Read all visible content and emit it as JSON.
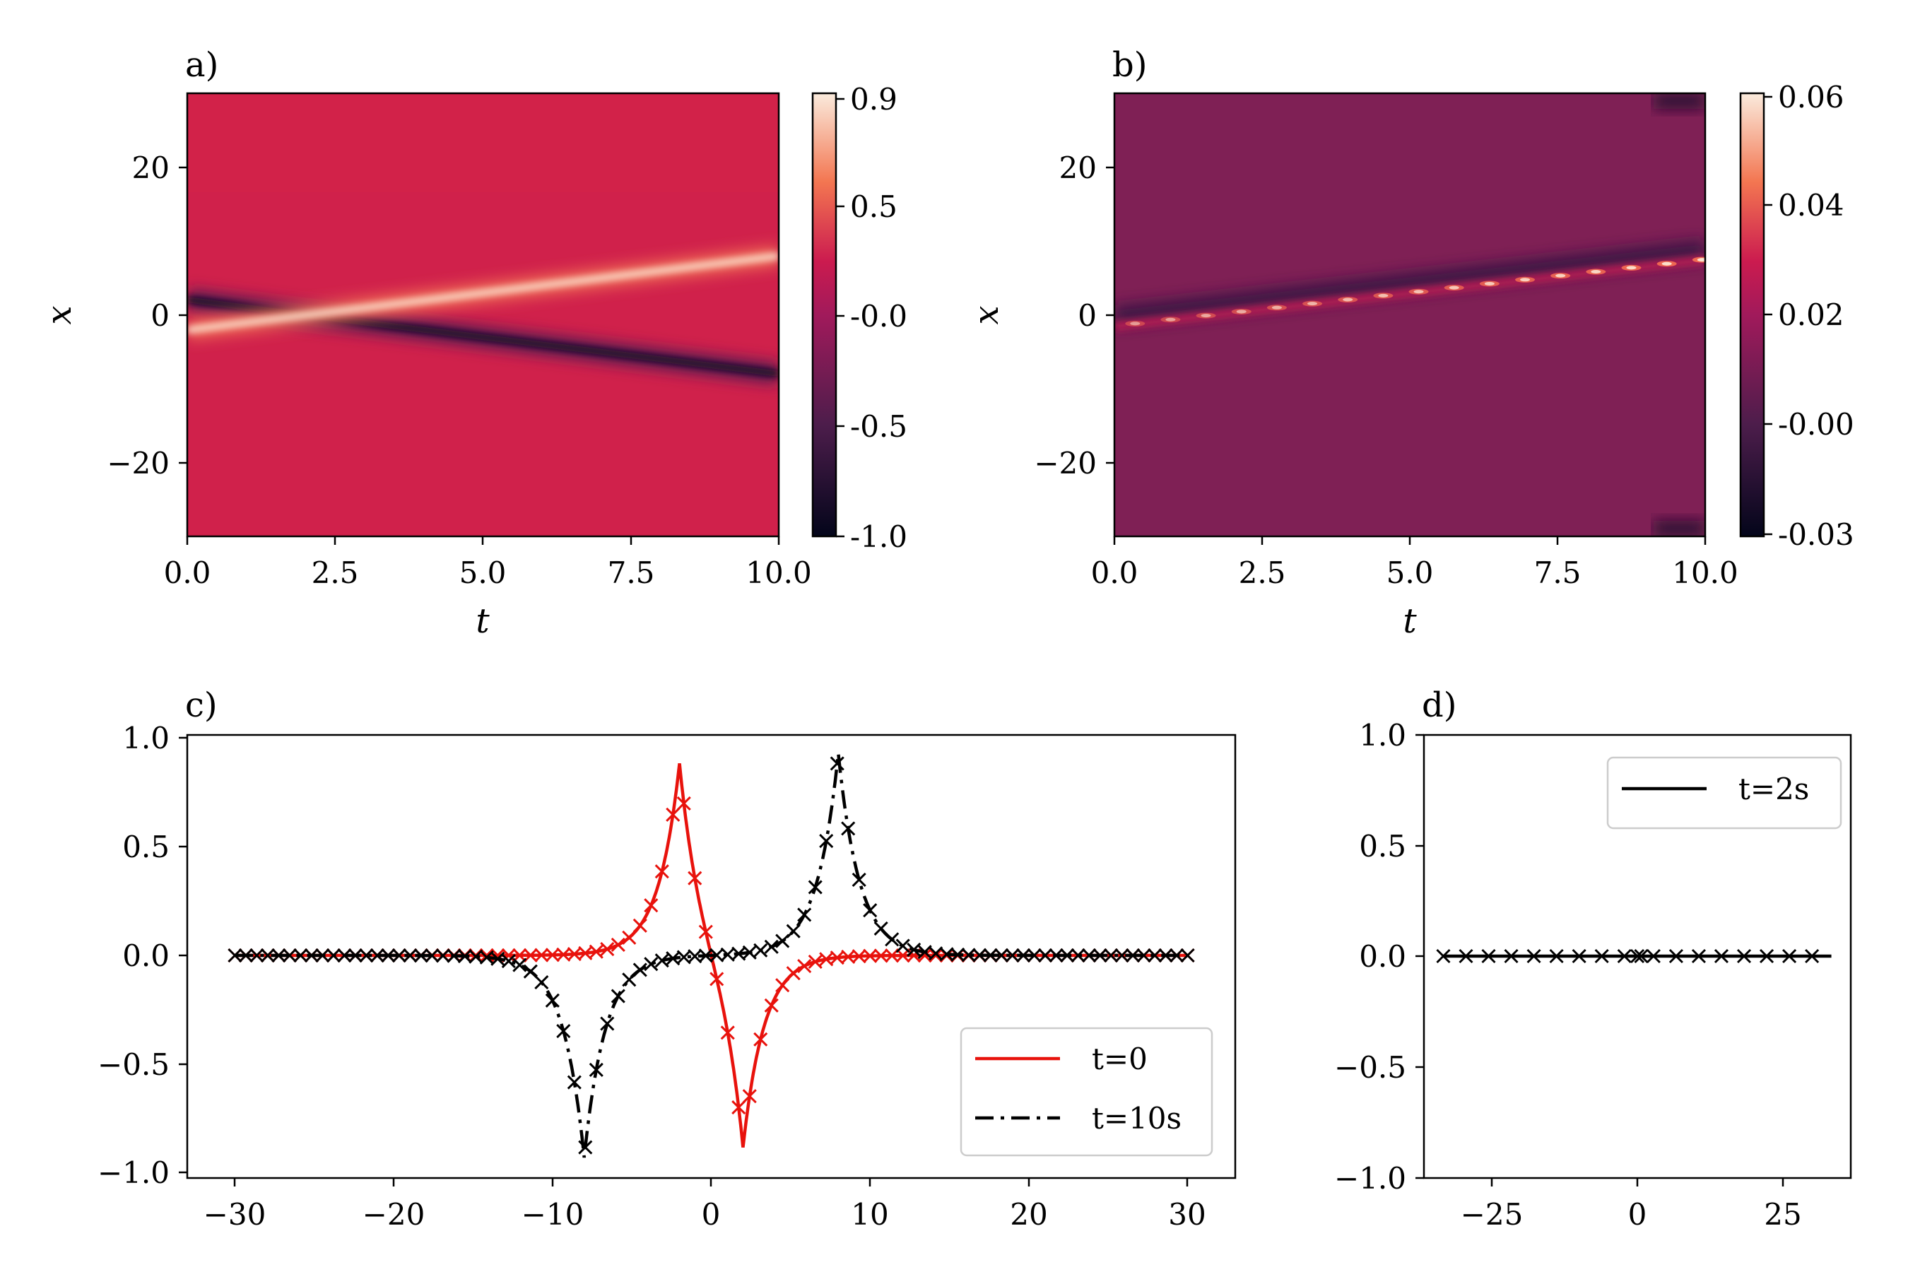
{
  "chart_data": [
    {
      "type": "heatmap",
      "panel_label": "a)",
      "xlabel": "t",
      "ylabel": "x",
      "xlim": [
        0,
        10
      ],
      "ylim": [
        -30,
        30
      ],
      "x_ticks": [
        "0.0",
        "2.5",
        "5.0",
        "7.5",
        "10.0"
      ],
      "y_ticks": [
        "−20",
        "0",
        "20"
      ],
      "colorbar_ticks": [
        "0.9",
        "0.5",
        "-0.0",
        "-0.5",
        "-1.0"
      ],
      "colorbar_range": [
        -1.0,
        0.9
      ],
      "features": [
        {
          "name": "bright_ridge",
          "value": 0.9,
          "t": [
            0,
            2,
            10
          ],
          "x": [
            -2,
            0,
            8
          ]
        },
        {
          "name": "dark_ridge",
          "value": -1.0,
          "t": [
            0,
            2,
            10
          ],
          "x": [
            2,
            0,
            -8
          ]
        }
      ]
    },
    {
      "type": "heatmap",
      "panel_label": "b)",
      "xlabel": "t",
      "ylabel": "x",
      "xlim": [
        0,
        10
      ],
      "ylim": [
        -30,
        30
      ],
      "x_ticks": [
        "0.0",
        "2.5",
        "5.0",
        "7.5",
        "10.0"
      ],
      "y_ticks": [
        "−20",
        "0",
        "20"
      ],
      "colorbar_ticks": [
        "0.06",
        "0.04",
        "0.02",
        "-0.00",
        "-0.03"
      ],
      "colorbar_range": [
        -0.03,
        0.06
      ],
      "features": [
        {
          "name": "error_band",
          "t": [
            0,
            10
          ],
          "x": [
            -1.5,
            7.5
          ],
          "peaks": 17
        }
      ]
    },
    {
      "type": "line",
      "panel_label": "c)",
      "xlim": [
        -33,
        33
      ],
      "ylim": [
        -1.05,
        1.05
      ],
      "x_ticks": [
        "−30",
        "−20",
        "−10",
        "0",
        "10",
        "20",
        "30"
      ],
      "y_ticks": [
        "1.0",
        "0.5",
        "0.0",
        "−0.5",
        "−1.0"
      ],
      "legend_position": "lower-right",
      "series": [
        {
          "name": "t=0",
          "color": "#e8120c",
          "style": "solid",
          "center": -2,
          "sign": 1,
          "amplitude": 0.93
        },
        {
          "name": "t=10s",
          "color": "#000000",
          "style": "dashdot",
          "center": 8,
          "sign": 1,
          "amplitude": 0.93
        }
      ]
    },
    {
      "type": "line",
      "panel_label": "d)",
      "xlim": [
        -33,
        33
      ],
      "ylim": [
        -1.0,
        1.0
      ],
      "x_ticks": [
        "−25",
        "0",
        "25"
      ],
      "y_ticks": [
        "1.0",
        "0.5",
        "0.0",
        "−0.5",
        "−1.0"
      ],
      "legend_position": "upper-right",
      "series": [
        {
          "name": "t=2s",
          "color": "#000000",
          "style": "solid",
          "value": 0.0
        }
      ]
    }
  ]
}
